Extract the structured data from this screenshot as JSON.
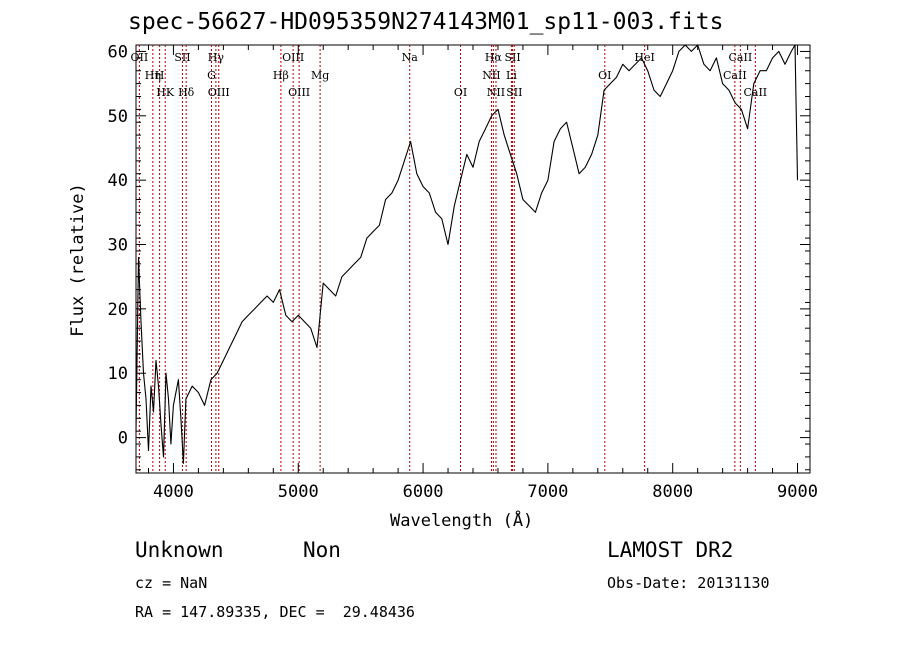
{
  "chart_data": {
    "type": "line",
    "title": "spec-56627-HD095359N274143M01_sp11-003.fits",
    "xlabel": "Wavelength (Å)",
    "ylabel": "Flux (relative)",
    "xlim": [
      3700,
      9100
    ],
    "ylim": [
      -5.5,
      61
    ],
    "xticks": [
      4000,
      5000,
      6000,
      7000,
      8000,
      9000
    ],
    "yticks": [
      0,
      10,
      20,
      30,
      40,
      50,
      60
    ],
    "series": [
      {
        "x": [
          3700,
          3720,
          3740,
          3760,
          3780,
          3800,
          3820,
          3840,
          3860,
          3880,
          3900,
          3920,
          3940,
          3960,
          3980,
          4000,
          4020,
          4040,
          4060,
          4080,
          4100,
          4150,
          4200,
          4250,
          4300,
          4350,
          4400,
          4450,
          4500,
          4550,
          4600,
          4650,
          4700,
          4750,
          4800,
          4850,
          4900,
          4950,
          5000,
          5050,
          5100,
          5150,
          5200,
          5250,
          5300,
          5350,
          5400,
          5450,
          5500,
          5550,
          5600,
          5650,
          5700,
          5750,
          5800,
          5850,
          5900,
          5950,
          6000,
          6050,
          6100,
          6150,
          6200,
          6250,
          6300,
          6350,
          6400,
          6450,
          6500,
          6550,
          6600,
          6650,
          6700,
          6750,
          6800,
          6850,
          6900,
          6950,
          7000,
          7050,
          7100,
          7150,
          7200,
          7250,
          7300,
          7350,
          7400,
          7450,
          7500,
          7550,
          7600,
          7650,
          7700,
          7750,
          7800,
          7850,
          7900,
          7950,
          8000,
          8050,
          8100,
          8150,
          8200,
          8250,
          8300,
          8350,
          8400,
          8450,
          8500,
          8550,
          8600,
          8650,
          8700,
          8750,
          8800,
          8850,
          8900,
          8950,
          8980,
          9000
        ],
        "y": [
          1,
          28,
          18,
          10,
          6,
          -2,
          8,
          4,
          12,
          8,
          2,
          -3,
          10,
          6,
          -1,
          5,
          7,
          9,
          3,
          -4,
          6,
          8,
          7,
          5,
          9,
          10,
          12,
          14,
          16,
          18,
          19,
          20,
          21,
          22,
          21,
          23,
          19,
          18,
          19,
          18,
          17,
          14,
          24,
          23,
          22,
          25,
          26,
          27,
          28,
          31,
          32,
          33,
          37,
          38,
          40,
          43,
          46,
          41,
          39,
          38,
          35,
          34,
          30,
          36,
          40,
          44,
          42,
          46,
          48,
          50,
          51,
          47,
          44,
          41,
          37,
          36,
          35,
          38,
          40,
          46,
          48,
          49,
          45,
          41,
          42,
          44,
          47,
          54,
          55,
          56,
          58,
          57,
          58,
          59,
          57,
          54,
          53,
          55,
          57,
          60,
          61,
          60,
          61,
          58,
          57,
          59,
          55,
          54,
          52,
          51,
          48,
          55,
          57,
          57,
          59,
          60,
          58,
          60,
          61,
          40
        ]
      }
    ],
    "lines": [
      {
        "label": "OII",
        "wl": 3727,
        "row": 0
      },
      {
        "label": "Hη",
        "wl": 3835,
        "row": 1
      },
      {
        "label": "H",
        "wl": 3889,
        "row": 1
      },
      {
        "label": "HK",
        "wl": 3934,
        "row": 2
      },
      {
        "label": "SII",
        "wl": 4072,
        "row": 0
      },
      {
        "label": "Hδ",
        "wl": 4102,
        "row": 2
      },
      {
        "label": "Hγ",
        "wl": 4340,
        "row": 0
      },
      {
        "label": "G",
        "wl": 4305,
        "row": 1
      },
      {
        "label": "OIII",
        "wl": 4363,
        "row": 2
      },
      {
        "label": "OIII",
        "wl": 4959,
        "row": 0
      },
      {
        "label": "Hβ",
        "wl": 4861,
        "row": 1
      },
      {
        "label": "OIII",
        "wl": 5007,
        "row": 2
      },
      {
        "label": "Mg",
        "wl": 5175,
        "row": 1
      },
      {
        "label": "Na",
        "wl": 5893,
        "row": 0
      },
      {
        "label": "OI",
        "wl": 6300,
        "row": 2
      },
      {
        "label": "Hα",
        "wl": 6563,
        "row": 0
      },
      {
        "label": "SII",
        "wl": 6717,
        "row": 0
      },
      {
        "label": "NII",
        "wl": 6548,
        "row": 1
      },
      {
        "label": "Li",
        "wl": 6708,
        "row": 1
      },
      {
        "label": "NII",
        "wl": 6584,
        "row": 2
      },
      {
        "label": "SII",
        "wl": 6731,
        "row": 2
      },
      {
        "label": "OI",
        "wl": 7456,
        "row": 1
      },
      {
        "label": "HeI",
        "wl": 7775,
        "row": 0
      },
      {
        "label": "CaII",
        "wl": 8542,
        "row": 0
      },
      {
        "label": "CaII",
        "wl": 8498,
        "row": 1
      },
      {
        "label": "CaII",
        "wl": 8662,
        "row": 2
      }
    ]
  },
  "footer": {
    "object_class": "Unknown",
    "subclass": "Non",
    "cz": "cz = NaN",
    "radec": "RA = 147.89335, DEC =  29.48436",
    "survey": "LAMOST DR2",
    "obs_date": "Obs-Date: 20131130"
  }
}
